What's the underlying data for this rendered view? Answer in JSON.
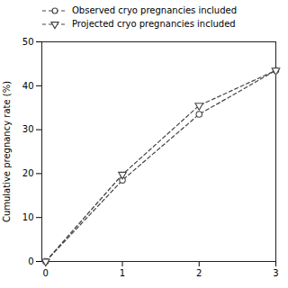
{
  "chart_data": {
    "type": "line",
    "x": [
      0,
      1,
      2,
      3
    ],
    "series": [
      {
        "name": "Observed cryo pregnancies included",
        "color": "#444444",
        "marker": "circle",
        "line_style": "dashed",
        "values": [
          0,
          18.5,
          33.5,
          43.5
        ]
      },
      {
        "name": "Projected cryo pregnancies included",
        "color": "#444444",
        "marker": "triangle-down",
        "line_style": "dashed",
        "values": [
          0,
          19.8,
          35.5,
          43.5
        ]
      }
    ],
    "ylabel": "Cumulative pregnancy rate (%)",
    "xlim": [
      -0.05,
      3.0
    ],
    "ylim": [
      0,
      50
    ],
    "xticks": [
      0,
      1,
      2,
      3
    ],
    "yticks": [
      0,
      10,
      20,
      30,
      40,
      50
    ],
    "legend": "upper left",
    "grid": false
  }
}
